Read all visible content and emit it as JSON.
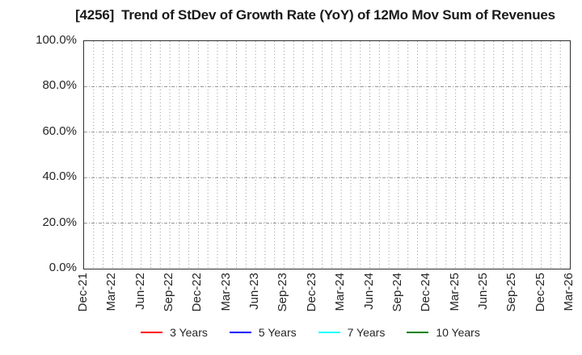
{
  "chart_data": {
    "type": "line",
    "title": "[4256]  Trend of StDev of Growth Rate (YoY) of 12Mo Mov Sum of Revenues",
    "x_tick_labels": [
      "Dec-21",
      "Mar-22",
      "Jun-22",
      "Sep-22",
      "Dec-22",
      "Mar-23",
      "Jun-23",
      "Sep-23",
      "Dec-23",
      "Mar-24",
      "Jun-24",
      "Sep-24",
      "Dec-24",
      "Mar-25",
      "Jun-25",
      "Sep-25",
      "Dec-25",
      "Mar-26"
    ],
    "x_minor_divisions_per_major": 3,
    "y_tick_labels": [
      "0.0%",
      "20.0%",
      "40.0%",
      "60.0%",
      "80.0%",
      "100.0%"
    ],
    "ylim": [
      0,
      100
    ],
    "y_major_step": 20,
    "grid": true,
    "legend_position": "bottom",
    "series": [
      {
        "name": "3 Years",
        "color": "#ff0000",
        "values": []
      },
      {
        "name": "5 Years",
        "color": "#0000ff",
        "values": []
      },
      {
        "name": "7 Years",
        "color": "#00ffff",
        "values": []
      },
      {
        "name": "10 Years",
        "color": "#008000",
        "values": []
      }
    ],
    "colors": {
      "grid_vertical": "#999999",
      "grid_horizontal": "#8f8f8f",
      "plot_border": "#2f2f2f",
      "text": "#262626",
      "background": "#ffffff"
    }
  }
}
